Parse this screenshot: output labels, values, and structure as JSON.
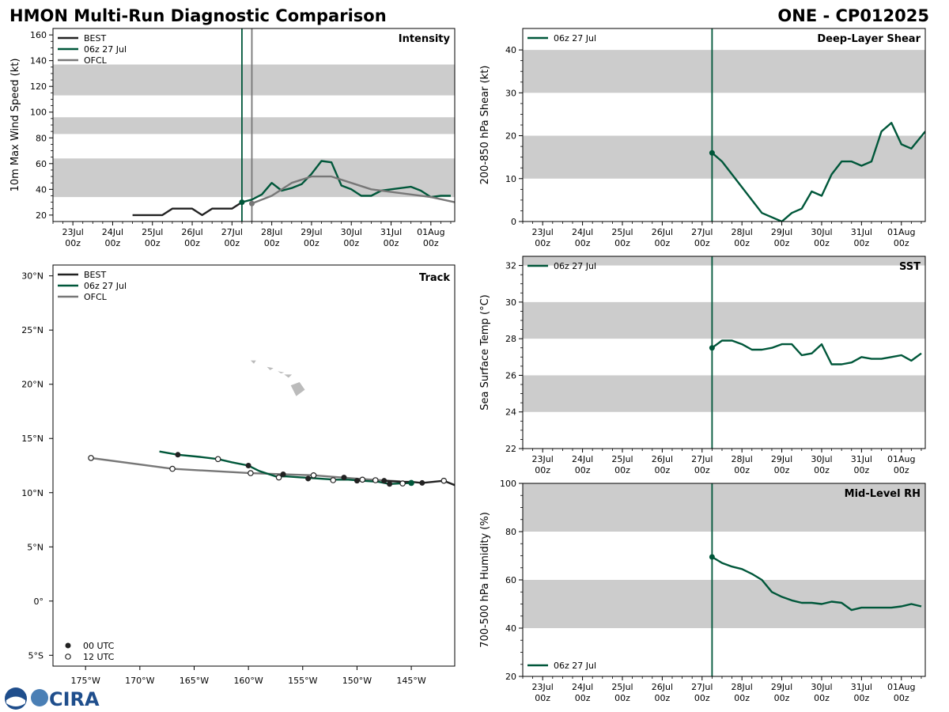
{
  "header": {
    "title": "HMON Multi-Run Diagnostic Comparison",
    "storm": "ONE - CP012025"
  },
  "colors": {
    "best": "#222222",
    "run": "#00573a",
    "ofcl": "#777777",
    "band": "#cccccc"
  },
  "time_ticks": [
    {
      "label": "23Jul",
      "sub": "00z"
    },
    {
      "label": "24Jul",
      "sub": "00z"
    },
    {
      "label": "25Jul",
      "sub": "00z"
    },
    {
      "label": "26Jul",
      "sub": "00z"
    },
    {
      "label": "27Jul",
      "sub": "00z"
    },
    {
      "label": "28Jul",
      "sub": "00z"
    },
    {
      "label": "29Jul",
      "sub": "00z"
    },
    {
      "label": "30Jul",
      "sub": "00z"
    },
    {
      "label": "31Jul",
      "sub": "00z"
    },
    {
      "label": "01Aug",
      "sub": "00z"
    }
  ],
  "logo": {
    "text": "CIRA"
  },
  "chart_data": [
    {
      "id": "intensity",
      "type": "line",
      "title": "Intensity",
      "ylabel": "10m Max Wind Speed (kt)",
      "xlim": [
        -0.5,
        9.6
      ],
      "ylim": [
        15,
        165
      ],
      "yticks": [
        20,
        40,
        60,
        80,
        100,
        120,
        140,
        160
      ],
      "bands": [
        [
          34,
          64
        ],
        [
          83,
          96
        ],
        [
          113,
          137
        ]
      ],
      "vlines": [
        {
          "x": 4.25,
          "color": "run"
        },
        {
          "x": 4.5,
          "color": "ofcl"
        }
      ],
      "legend": [
        "BEST",
        "06z 27 Jul",
        "OFCL"
      ],
      "series": [
        {
          "name": "BEST",
          "color": "best",
          "x": [
            1.5,
            1.75,
            2,
            2.25,
            2.5,
            2.75,
            3,
            3.25,
            3.5,
            3.75,
            4,
            4.25
          ],
          "y": [
            20,
            20,
            20,
            20,
            25,
            25,
            25,
            20,
            25,
            25,
            25,
            30
          ]
        },
        {
          "name": "06z 27 Jul",
          "color": "run",
          "marker_first": true,
          "x": [
            4.25,
            4.5,
            4.75,
            5,
            5.25,
            5.5,
            5.75,
            6,
            6.25,
            6.5,
            6.75,
            7,
            7.25,
            7.5,
            7.75,
            8,
            8.25,
            8.5,
            8.75,
            9,
            9.25,
            9.5
          ],
          "y": [
            30,
            32,
            36,
            45,
            39,
            41,
            44,
            52,
            62,
            61,
            43,
            40,
            35,
            35,
            39,
            40,
            41,
            42,
            39,
            34,
            35,
            35
          ]
        },
        {
          "name": "OFCL",
          "color": "ofcl",
          "marker_first": true,
          "x": [
            4.5,
            5,
            5.5,
            6,
            6.5,
            7,
            7.5,
            8,
            9,
            9.6
          ],
          "y": [
            29,
            35,
            45,
            50,
            50,
            45,
            40,
            38,
            34,
            30
          ]
        }
      ]
    },
    {
      "id": "shear",
      "type": "line",
      "title": "Deep-Layer Shear",
      "ylabel": "200-850 hPa Shear (kt)",
      "xlim": [
        -0.5,
        9.6
      ],
      "ylim": [
        0,
        45
      ],
      "yticks": [
        0,
        10,
        20,
        30,
        40
      ],
      "bands": [
        [
          10,
          20
        ],
        [
          30,
          40
        ]
      ],
      "vlines": [
        {
          "x": 4.25,
          "color": "run"
        }
      ],
      "legend": [
        "06z 27 Jul"
      ],
      "series": [
        {
          "name": "06z 27 Jul",
          "color": "run",
          "marker_first": true,
          "x": [
            4.25,
            4.5,
            5.5,
            6,
            6.25,
            6.5,
            6.75,
            7,
            7.25,
            7.5,
            7.75,
            8,
            8.25,
            8.5,
            8.75,
            9,
            9.25,
            9.6
          ],
          "y": [
            16,
            14,
            2,
            0,
            2,
            3,
            7,
            6,
            11,
            14,
            14,
            13,
            14,
            21,
            23,
            18,
            17,
            21
          ]
        }
      ]
    },
    {
      "id": "sst",
      "type": "line",
      "title": "SST",
      "ylabel": "Sea Surface Temp (°C)",
      "xlim": [
        -0.5,
        9.6
      ],
      "ylim": [
        22,
        32.5
      ],
      "yticks": [
        22,
        24,
        26,
        28,
        30,
        32
      ],
      "bands": [
        [
          24,
          26
        ],
        [
          28,
          30
        ],
        [
          32,
          32.5
        ]
      ],
      "vlines": [
        {
          "x": 4.25,
          "color": "run"
        }
      ],
      "legend": [
        "06z 27 Jul"
      ],
      "series": [
        {
          "name": "06z 27 Jul",
          "color": "run",
          "marker_first": true,
          "x": [
            4.25,
            4.5,
            4.75,
            5,
            5.25,
            5.5,
            5.75,
            6,
            6.25,
            6.5,
            6.75,
            7,
            7.25,
            7.5,
            7.75,
            8,
            8.25,
            8.5,
            8.75,
            9,
            9.25,
            9.5
          ],
          "y": [
            27.5,
            27.9,
            27.9,
            27.7,
            27.4,
            27.4,
            27.5,
            27.7,
            27.7,
            27.1,
            27.2,
            27.7,
            26.6,
            26.6,
            26.7,
            27.0,
            26.9,
            26.9,
            27.0,
            27.1,
            26.8,
            27.2
          ]
        }
      ]
    },
    {
      "id": "rh",
      "type": "line",
      "title": "Mid-Level RH",
      "ylabel": "700-500 hPa Humidity (%)",
      "xlim": [
        -0.5,
        9.6
      ],
      "ylim": [
        20,
        100
      ],
      "yticks": [
        20,
        40,
        60,
        80,
        100
      ],
      "bands": [
        [
          40,
          60
        ],
        [
          80,
          100
        ]
      ],
      "vlines": [
        {
          "x": 4.25,
          "color": "run"
        }
      ],
      "legend": [
        "06z 27 Jul"
      ],
      "series": [
        {
          "name": "06z 27 Jul",
          "color": "run",
          "marker_first": true,
          "x": [
            4.25,
            4.5,
            4.75,
            5,
            5.25,
            5.5,
            5.75,
            6,
            6.25,
            6.5,
            6.75,
            7,
            7.25,
            7.5,
            7.75,
            8,
            8.25,
            8.5,
            8.75,
            9,
            9.25,
            9.5
          ],
          "y": [
            69.5,
            67,
            65.5,
            64.5,
            62.5,
            60,
            55,
            53,
            51.5,
            50.5,
            50.5,
            50,
            51,
            50.5,
            47.5,
            48.5,
            48.5,
            48.5,
            48.5,
            49,
            50,
            49
          ]
        }
      ]
    },
    {
      "id": "track",
      "type": "scatter",
      "title": "Track",
      "xlim": [
        -178,
        -141
      ],
      "ylim": [
        -6,
        31
      ],
      "xticks": [
        {
          "v": -175,
          "label": "175°W"
        },
        {
          "v": -170,
          "label": "170°W"
        },
        {
          "v": -165,
          "label": "165°W"
        },
        {
          "v": -160,
          "label": "160°W"
        },
        {
          "v": -155,
          "label": "155°W"
        },
        {
          "v": -150,
          "label": "150°W"
        },
        {
          "v": -145,
          "label": "145°W"
        }
      ],
      "yticks": [
        {
          "v": -5,
          "label": "5°S"
        },
        {
          "v": 0,
          "label": "0°"
        },
        {
          "v": 5,
          "label": "5°N"
        },
        {
          "v": 10,
          "label": "10°N"
        },
        {
          "v": 15,
          "label": "15°N"
        },
        {
          "v": 20,
          "label": "20°N"
        },
        {
          "v": 25,
          "label": "25°N"
        },
        {
          "v": 30,
          "label": "30°N"
        }
      ],
      "legend": [
        "BEST",
        "06z 27 Jul",
        "OFCL"
      ],
      "marker_legend": [
        "00 UTC",
        "12 UTC"
      ],
      "series": [
        {
          "name": "BEST",
          "color": "best",
          "lon": [
            -147.5,
            -146,
            -145,
            -144,
            -143,
            -142,
            -141
          ],
          "lat": [
            11.1,
            11.0,
            11.0,
            10.9,
            11.0,
            11.1,
            10.7
          ],
          "filled": [
            [
              -147.5,
              11.1
            ],
            [
              -144,
              10.9
            ]
          ],
          "open": [
            [
              -142,
              11.1
            ]
          ]
        },
        {
          "name": "06z 27 Jul",
          "color": "run",
          "lon": [
            -168.2,
            -166.5,
            -164.5,
            -162.8,
            -161.5,
            -160,
            -159,
            -157.5,
            -156.5,
            -155,
            -153.5,
            -152,
            -150.8,
            -149.5,
            -148,
            -147,
            -146,
            -145
          ],
          "lat": [
            13.8,
            13.5,
            13.3,
            13.1,
            12.8,
            12.5,
            12,
            11.5,
            11.5,
            11.4,
            11.3,
            11.2,
            11.2,
            11.1,
            11.0,
            10.8,
            10.85,
            10.9
          ],
          "filled": [
            [
              -166.5,
              13.5
            ],
            [
              -160,
              12.5
            ],
            [
              -156.8,
              11.7
            ],
            [
              -154.5,
              11.3
            ],
            [
              -151.2,
              11.4
            ],
            [
              -150.0,
              11.1
            ],
            [
              -147.0,
              10.8
            ]
          ],
          "open": [
            [
              -162.8,
              13.1
            ],
            [
              -157.2,
              11.4
            ],
            [
              -152.2,
              11.15
            ],
            [
              -149.5,
              11.2
            ],
            [
              -148.3,
              11.15
            ],
            [
              -145.8,
              10.85
            ]
          ],
          "current": [
            -145,
            10.9
          ]
        },
        {
          "name": "OFCL",
          "color": "ofcl",
          "lon": [
            -174.5,
            -167,
            -159.8,
            -154,
            -149.5,
            -147.0,
            -146.0
          ],
          "lat": [
            13.2,
            12.2,
            11.8,
            11.6,
            11.25,
            11.1,
            11.05
          ],
          "filled": [],
          "open": [
            [
              -174.5,
              13.2
            ],
            [
              -167,
              12.2
            ],
            [
              -159.8,
              11.8
            ],
            [
              -154,
              11.6
            ]
          ]
        }
      ]
    }
  ]
}
